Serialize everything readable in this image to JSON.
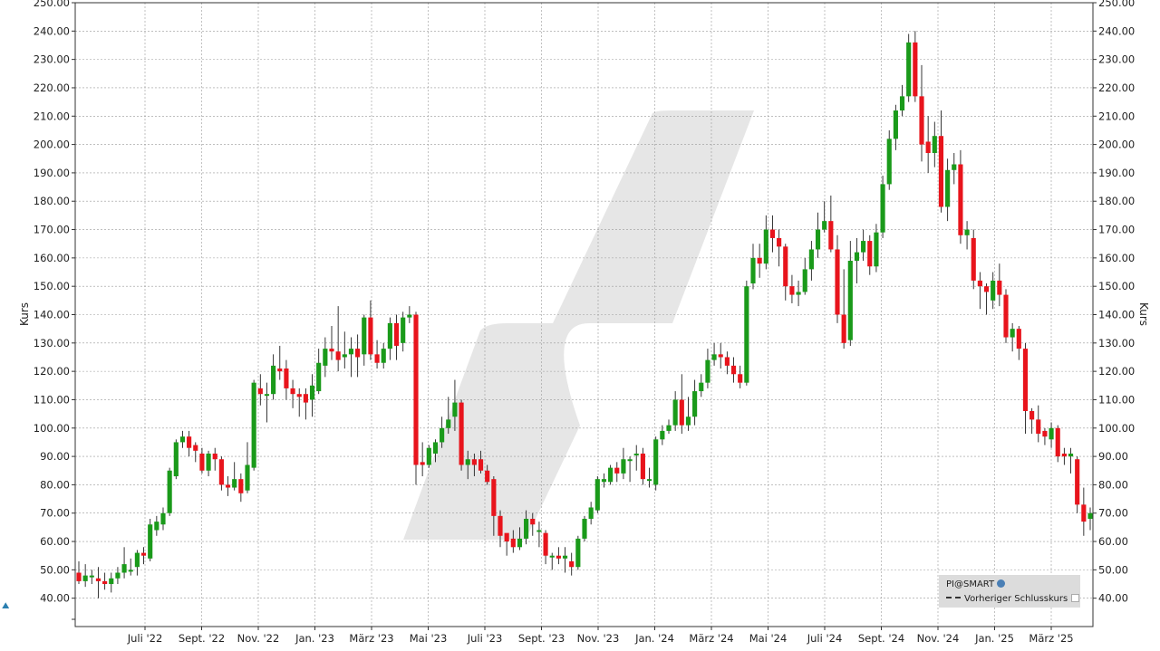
{
  "chart_data": {
    "type": "candlestick",
    "ylabel": "Kurs",
    "ylim": [
      30,
      250
    ],
    "yticks": [
      "40.00",
      "50.00",
      "60.00",
      "70.00",
      "80.00",
      "90.00",
      "100.00",
      "110.00",
      "120.00",
      "130.00",
      "140.00",
      "150.00",
      "160.00",
      "170.00",
      "180.00",
      "190.00",
      "200.00",
      "210.00",
      "220.00",
      "230.00",
      "240.00",
      "250.00"
    ],
    "xticks": [
      "Juli '22",
      "Sept. '22",
      "Nov. '22",
      "Jan. '23",
      "März '23",
      "Mai '23",
      "Juli '23",
      "Sept. '23",
      "Nov. '23",
      "Jan. '24",
      "März '24",
      "Mai '24",
      "Juli '24",
      "Sept. '24",
      "Nov. '24",
      "Jan. '25",
      "März '25"
    ],
    "grid": true,
    "legend_position": "bottom-right",
    "colors": {
      "up": "#1a9a1a",
      "down": "#e8141c",
      "wick": "#222222",
      "grid": "#999999",
      "watermark": "#e6e6e6"
    },
    "candles": [
      [
        49,
        46,
        53,
        45
      ],
      [
        46,
        48,
        52,
        44
      ],
      [
        48,
        48,
        50,
        45
      ],
      [
        47,
        46,
        51,
        40
      ],
      [
        46,
        45,
        49,
        43
      ],
      [
        45,
        47,
        49,
        42
      ],
      [
        47,
        49,
        51,
        45
      ],
      [
        49,
        52,
        58,
        47
      ],
      [
        50,
        50,
        54,
        48
      ],
      [
        51,
        56,
        57,
        48
      ],
      [
        56,
        55,
        58,
        52
      ],
      [
        54,
        66,
        68,
        53
      ],
      [
        64,
        67,
        69,
        62
      ],
      [
        66,
        70,
        72,
        64
      ],
      [
        70,
        85,
        86,
        69
      ],
      [
        83,
        95,
        96,
        82
      ],
      [
        95,
        97,
        99,
        93
      ],
      [
        97,
        93,
        99,
        90
      ],
      [
        94,
        92,
        95,
        88
      ],
      [
        91,
        85,
        93,
        84
      ],
      [
        85,
        91,
        92,
        83
      ],
      [
        91,
        89,
        93,
        85
      ],
      [
        89,
        80,
        90,
        78
      ],
      [
        80,
        79,
        83,
        76
      ],
      [
        79,
        82,
        88,
        78
      ],
      [
        82,
        77,
        84,
        74
      ],
      [
        78,
        87,
        95,
        77
      ],
      [
        86,
        116,
        117,
        85
      ],
      [
        114,
        112,
        119,
        108
      ],
      [
        112,
        112,
        116,
        102
      ],
      [
        112,
        122,
        126,
        110
      ],
      [
        121,
        120,
        129,
        117
      ],
      [
        121,
        114,
        124,
        110
      ],
      [
        114,
        112,
        117,
        107
      ],
      [
        112,
        111,
        114,
        104
      ],
      [
        112,
        109,
        114,
        103
      ],
      [
        110,
        115,
        119,
        104
      ],
      [
        113,
        123,
        128,
        112
      ],
      [
        122,
        128,
        132,
        118
      ],
      [
        128,
        127,
        136,
        124
      ],
      [
        127,
        124,
        143,
        120
      ],
      [
        125,
        126,
        134,
        121
      ],
      [
        126,
        128,
        132,
        118
      ],
      [
        128,
        125,
        133,
        118
      ],
      [
        126,
        139,
        140,
        122
      ],
      [
        139,
        126,
        145,
        124
      ],
      [
        126,
        123,
        131,
        121
      ],
      [
        123,
        128,
        130,
        121
      ],
      [
        128,
        137,
        139,
        124
      ],
      [
        137,
        129,
        140,
        124
      ],
      [
        130,
        139,
        141,
        127
      ],
      [
        139,
        140,
        143,
        137
      ],
      [
        140,
        87,
        141,
        80
      ],
      [
        88,
        87,
        95,
        83
      ],
      [
        87,
        93,
        94,
        86
      ],
      [
        91,
        95,
        96,
        88
      ],
      [
        95,
        100,
        104,
        93
      ],
      [
        100,
        103,
        111,
        98
      ],
      [
        104,
        109,
        117,
        99
      ],
      [
        109,
        87,
        110,
        85
      ],
      [
        87,
        89,
        92,
        82
      ],
      [
        89,
        87,
        91,
        83
      ],
      [
        89,
        85,
        92,
        84
      ],
      [
        85,
        81,
        87,
        80
      ],
      [
        82,
        69,
        83,
        62
      ],
      [
        69,
        62,
        71,
        58
      ],
      [
        63,
        60,
        62,
        55
      ],
      [
        61,
        58,
        64,
        56
      ],
      [
        58,
        61,
        65,
        57
      ],
      [
        61,
        68,
        71,
        59
      ],
      [
        68,
        66,
        70,
        62
      ],
      [
        64,
        64,
        67,
        58
      ],
      [
        63,
        55,
        64,
        52
      ],
      [
        55,
        55,
        56,
        50
      ],
      [
        55,
        54,
        58,
        52
      ],
      [
        54,
        55,
        58,
        49
      ],
      [
        53,
        51,
        56,
        48
      ],
      [
        51,
        61,
        62,
        50
      ],
      [
        61,
        68,
        69,
        60
      ],
      [
        68,
        72,
        74,
        66
      ],
      [
        71,
        82,
        83,
        70
      ],
      [
        81,
        82,
        84,
        79
      ],
      [
        81,
        86,
        87,
        80
      ],
      [
        86,
        84,
        88,
        81
      ],
      [
        84,
        89,
        93,
        82
      ],
      [
        89,
        89,
        90,
        81
      ],
      [
        91,
        91,
        94,
        85
      ],
      [
        91,
        82,
        93,
        80
      ],
      [
        82,
        82,
        86,
        79
      ],
      [
        80,
        96,
        97,
        78
      ],
      [
        96,
        99,
        101,
        94
      ],
      [
        99,
        101,
        103,
        98
      ],
      [
        101,
        110,
        113,
        99
      ],
      [
        110,
        101,
        119,
        98
      ],
      [
        101,
        104,
        111,
        99
      ],
      [
        104,
        113,
        117,
        101
      ],
      [
        113,
        116,
        119,
        111
      ],
      [
        116,
        124,
        128,
        114
      ],
      [
        124,
        126,
        130,
        122
      ],
      [
        126,
        125,
        130,
        121
      ],
      [
        125,
        122,
        127,
        119
      ],
      [
        122,
        119,
        125,
        116
      ],
      [
        119,
        116,
        122,
        114
      ],
      [
        116,
        150,
        152,
        115
      ],
      [
        151,
        160,
        165,
        149
      ],
      [
        160,
        158,
        165,
        153
      ],
      [
        158,
        170,
        175,
        156
      ],
      [
        170,
        167,
        175,
        162
      ],
      [
        167,
        164,
        170,
        157
      ],
      [
        164,
        150,
        165,
        145
      ],
      [
        150,
        147,
        154,
        144
      ],
      [
        147,
        148,
        152,
        143
      ],
      [
        148,
        156,
        160,
        147
      ],
      [
        156,
        163,
        166,
        152
      ],
      [
        163,
        170,
        176,
        160
      ],
      [
        170,
        173,
        180,
        169
      ],
      [
        173,
        163,
        182,
        162
      ],
      [
        163,
        140,
        168,
        137
      ],
      [
        140,
        130,
        156,
        128
      ],
      [
        131,
        159,
        166,
        129
      ],
      [
        159,
        162,
        167,
        151
      ],
      [
        162,
        166,
        170,
        159
      ],
      [
        166,
        157,
        168,
        154
      ],
      [
        157,
        169,
        172,
        155
      ],
      [
        169,
        186,
        189,
        167
      ],
      [
        186,
        202,
        205,
        184
      ],
      [
        202,
        212,
        214,
        198
      ],
      [
        212,
        217,
        221,
        210
      ],
      [
        217,
        236,
        239,
        215
      ],
      [
        236,
        217,
        240,
        215
      ],
      [
        217,
        200,
        228,
        194
      ],
      [
        201,
        197,
        210,
        190
      ],
      [
        197,
        203,
        208,
        192
      ],
      [
        203,
        178,
        212,
        176
      ],
      [
        178,
        191,
        195,
        173
      ],
      [
        191,
        193,
        197,
        186
      ],
      [
        193,
        168,
        198,
        165
      ],
      [
        168,
        170,
        173,
        163
      ],
      [
        167,
        152,
        170,
        149
      ],
      [
        152,
        150,
        155,
        142
      ],
      [
        150,
        148,
        151,
        140
      ],
      [
        145,
        152,
        155,
        142
      ],
      [
        152,
        147,
        158,
        143
      ],
      [
        147,
        132,
        149,
        130
      ],
      [
        132,
        135,
        137,
        127
      ],
      [
        135,
        128,
        136,
        124
      ],
      [
        128,
        106,
        130,
        98
      ],
      [
        106,
        103,
        107,
        98
      ],
      [
        103,
        98,
        108,
        95
      ],
      [
        99,
        97,
        100,
        94
      ],
      [
        96,
        100,
        102,
        93
      ],
      [
        100,
        90,
        101,
        88
      ],
      [
        91,
        90,
        93,
        87
      ],
      [
        90,
        91,
        93,
        84
      ],
      [
        89,
        73,
        90,
        70
      ],
      [
        73,
        67,
        79,
        62
      ],
      [
        68,
        70,
        72,
        64
      ]
    ]
  },
  "legend": {
    "brand": "PI@SMART",
    "prev_close": "Vorheriger Schlusskurs"
  }
}
